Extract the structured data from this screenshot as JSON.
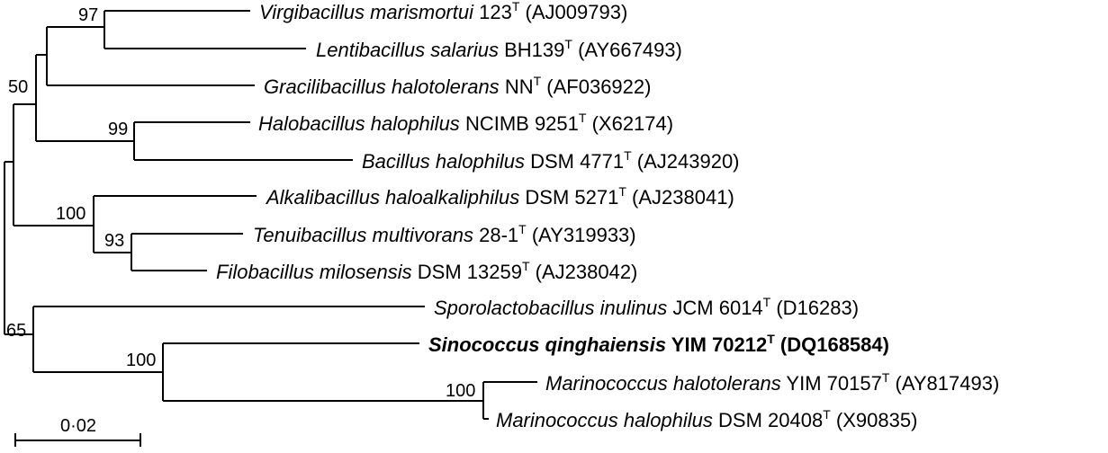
{
  "tree": {
    "taxa": [
      {
        "id": "virgibacillus",
        "genus_species": "Virgibacillus marismortui",
        "strain": "123",
        "type_mark": "T",
        "accession": "(AJ009793)",
        "bold": false
      },
      {
        "id": "lentibacillus",
        "genus_species": "Lentibacillus salarius",
        "strain": "BH139",
        "type_mark": "T",
        "accession": "(AY667493)",
        "bold": false
      },
      {
        "id": "gracilibacillus",
        "genus_species": "Gracilibacillus halotolerans",
        "strain": "NN",
        "type_mark": "T",
        "accession": "(AF036922)",
        "bold": false
      },
      {
        "id": "halobacillus",
        "genus_species": "Halobacillus halophilus",
        "strain": "NCIMB 9251",
        "type_mark": "T",
        "accession": "(X62174)",
        "bold": false
      },
      {
        "id": "bacillus",
        "genus_species": "Bacillus halophilus",
        "strain": "DSM 4771",
        "type_mark": "T",
        "accession": "(AJ243920)",
        "bold": false
      },
      {
        "id": "alkalibacillus",
        "genus_species": "Alkalibacillus haloalkaliphilus",
        "strain": "DSM 5271",
        "type_mark": "T",
        "accession": "(AJ238041)",
        "bold": false
      },
      {
        "id": "tenuibacillus",
        "genus_species": "Tenuibacillus multivorans",
        "strain": "28-1",
        "type_mark": "T",
        "accession": "(AY319933)",
        "bold": false
      },
      {
        "id": "filobacillus",
        "genus_species": "Filobacillus milosensis",
        "strain": "DSM 13259",
        "type_mark": "T",
        "accession": "(AJ238042)",
        "bold": false
      },
      {
        "id": "sporolactobacillus",
        "genus_species": "Sporolactobacillus inulinus",
        "strain": "JCM 6014",
        "type_mark": "T",
        "accession": "(D16283)",
        "bold": false
      },
      {
        "id": "sinococcus",
        "genus_species": "Sinococcus qinghaiensis",
        "strain": "YIM 70212",
        "type_mark": "T",
        "accession": "(DQ168584)",
        "bold": true
      },
      {
        "id": "marinococcus-halotolerans",
        "genus_species": "Marinococcus halotolerans",
        "strain": "YIM 70157",
        "type_mark": "T",
        "accession": "(AY817493)",
        "bold": false
      },
      {
        "id": "marinococcus-halophilus",
        "genus_species": "Marinococcus halophilus",
        "strain": "DSM 20408",
        "type_mark": "T",
        "accession": "(X90835)",
        "bold": false
      }
    ],
    "bootstrap": {
      "virgi_lenti": "97",
      "virgi_graci": "50",
      "halo_bacillus": "99",
      "alkali_group": "100",
      "tenui_filo": "93",
      "sporo_group": "65",
      "sino_marino": "100",
      "marinococcus_pair": "100"
    },
    "scale_bar_label": "0·02",
    "line_color": "#000000"
  }
}
